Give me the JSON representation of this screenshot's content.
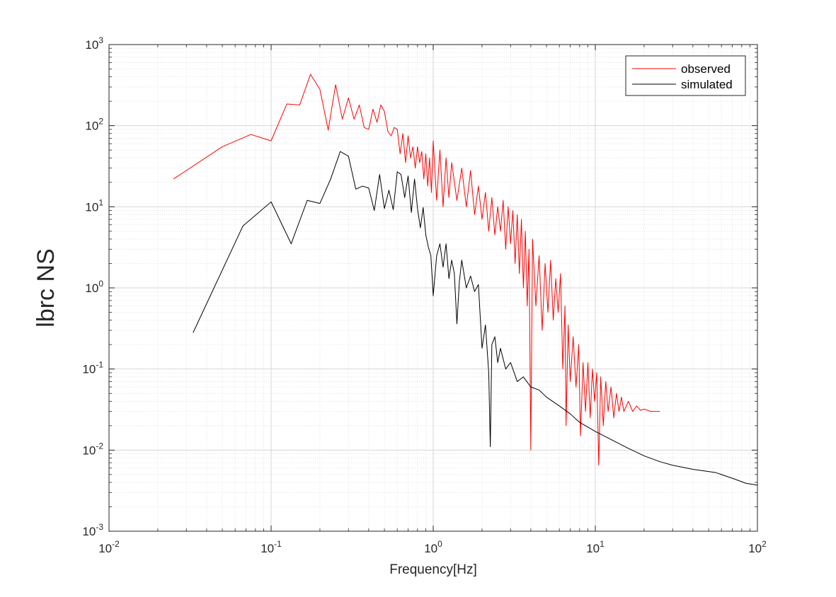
{
  "chart_data": {
    "type": "line",
    "title": "",
    "xlabel": "Frequency[Hz]",
    "ylabel": "lbrc NS",
    "xscale": "log",
    "yscale": "log",
    "xlim": [
      0.01,
      100
    ],
    "ylim": [
      0.001,
      1000
    ],
    "grid": true,
    "minor_grid": true,
    "legend_position": "top-right",
    "x_ticks": [
      {
        "base": "10",
        "exp": "-2"
      },
      {
        "base": "10",
        "exp": "-1"
      },
      {
        "base": "10",
        "exp": "0"
      },
      {
        "base": "10",
        "exp": "1"
      },
      {
        "base": "10",
        "exp": "2"
      }
    ],
    "y_ticks": [
      {
        "base": "10",
        "exp": "-3"
      },
      {
        "base": "10",
        "exp": "-2"
      },
      {
        "base": "10",
        "exp": "-1"
      },
      {
        "base": "10",
        "exp": "0"
      },
      {
        "base": "10",
        "exp": "1"
      },
      {
        "base": "10",
        "exp": "2"
      },
      {
        "base": "10",
        "exp": "3"
      }
    ],
    "series": [
      {
        "name": "observed",
        "color": "#ff0000",
        "points": [
          [
            0.025,
            22
          ],
          [
            0.05,
            55
          ],
          [
            0.075,
            78
          ],
          [
            0.1,
            65
          ],
          [
            0.125,
            185
          ],
          [
            0.15,
            180
          ],
          [
            0.175,
            430
          ],
          [
            0.2,
            280
          ],
          [
            0.225,
            88
          ],
          [
            0.25,
            320
          ],
          [
            0.275,
            120
          ],
          [
            0.3,
            220
          ],
          [
            0.325,
            120
          ],
          [
            0.35,
            180
          ],
          [
            0.375,
            95
          ],
          [
            0.4,
            90
          ],
          [
            0.425,
            160
          ],
          [
            0.45,
            110
          ],
          [
            0.475,
            180
          ],
          [
            0.5,
            150
          ],
          [
            0.525,
            85
          ],
          [
            0.55,
            75
          ],
          [
            0.575,
            95
          ],
          [
            0.6,
            90
          ],
          [
            0.625,
            45
          ],
          [
            0.65,
            80
          ],
          [
            0.675,
            35
          ],
          [
            0.7,
            75
          ],
          [
            0.725,
            40
          ],
          [
            0.75,
            55
          ],
          [
            0.775,
            30
          ],
          [
            0.8,
            55
          ],
          [
            0.825,
            35
          ],
          [
            0.85,
            48
          ],
          [
            0.875,
            22
          ],
          [
            0.9,
            45
          ],
          [
            0.925,
            18
          ],
          [
            0.95,
            40
          ],
          [
            0.975,
            15
          ],
          [
            1.0,
            65
          ],
          [
            1.05,
            12
          ],
          [
            1.1,
            50
          ],
          [
            1.15,
            10
          ],
          [
            1.2,
            40
          ],
          [
            1.25,
            13
          ],
          [
            1.3,
            35
          ],
          [
            1.4,
            12
          ],
          [
            1.5,
            30
          ],
          [
            1.6,
            10
          ],
          [
            1.7,
            28
          ],
          [
            1.8,
            8
          ],
          [
            1.9,
            18
          ],
          [
            2.0,
            7
          ],
          [
            2.1,
            15
          ],
          [
            2.2,
            5
          ],
          [
            2.3,
            13
          ],
          [
            2.4,
            4.5
          ],
          [
            2.5,
            10
          ],
          [
            2.6,
            5
          ],
          [
            2.7,
            12
          ],
          [
            2.8,
            3
          ],
          [
            2.9,
            10
          ],
          [
            3.0,
            3.5
          ],
          [
            3.1,
            9
          ],
          [
            3.2,
            2
          ],
          [
            3.3,
            8
          ],
          [
            3.4,
            1.5
          ],
          [
            3.5,
            7
          ],
          [
            3.6,
            1
          ],
          [
            3.7,
            5
          ],
          [
            3.8,
            0.6
          ],
          [
            3.9,
            3
          ],
          [
            4.0,
            0.01
          ],
          [
            4.1,
            4
          ],
          [
            4.3,
            0.6
          ],
          [
            4.5,
            2.5
          ],
          [
            4.7,
            0.3
          ],
          [
            4.9,
            2
          ],
          [
            5.1,
            0.5
          ],
          [
            5.3,
            2.2
          ],
          [
            5.5,
            0.4
          ],
          [
            5.7,
            1.3
          ],
          [
            5.9,
            0.5
          ],
          [
            6.1,
            1.5
          ],
          [
            6.3,
            0.1
          ],
          [
            6.5,
            0.6
          ],
          [
            6.6,
            0.02
          ],
          [
            6.8,
            0.35
          ],
          [
            7.0,
            0.07
          ],
          [
            7.3,
            0.25
          ],
          [
            7.6,
            0.06
          ],
          [
            7.9,
            0.2
          ],
          [
            8.1,
            0.015
          ],
          [
            8.4,
            0.12
          ],
          [
            8.7,
            0.03
          ],
          [
            9.0,
            0.12
          ],
          [
            9.3,
            0.025
          ],
          [
            9.6,
            0.1
          ],
          [
            9.9,
            0.04
          ],
          [
            10.2,
            0.09
          ],
          [
            10.5,
            0.0065
          ],
          [
            10.8,
            0.08
          ],
          [
            11.2,
            0.02
          ],
          [
            11.6,
            0.07
          ],
          [
            12.0,
            0.03
          ],
          [
            12.5,
            0.06
          ],
          [
            13.0,
            0.025
          ],
          [
            13.5,
            0.05
          ],
          [
            14.0,
            0.03
          ],
          [
            14.5,
            0.045
          ],
          [
            15.0,
            0.03
          ],
          [
            16.0,
            0.04
          ],
          [
            17.0,
            0.03
          ],
          [
            18.0,
            0.035
          ],
          [
            19.0,
            0.031
          ],
          [
            20.0,
            0.032
          ],
          [
            22.0,
            0.03
          ],
          [
            25.0,
            0.03
          ]
        ]
      },
      {
        "name": "simulated",
        "color": "#000000",
        "points": [
          [
            0.033,
            0.28
          ],
          [
            0.067,
            5.8
          ],
          [
            0.1,
            11.5
          ],
          [
            0.133,
            3.5
          ],
          [
            0.167,
            12
          ],
          [
            0.2,
            11
          ],
          [
            0.233,
            22
          ],
          [
            0.267,
            48
          ],
          [
            0.3,
            42
          ],
          [
            0.333,
            16.5
          ],
          [
            0.367,
            18
          ],
          [
            0.4,
            17
          ],
          [
            0.433,
            9
          ],
          [
            0.467,
            25
          ],
          [
            0.5,
            9.5
          ],
          [
            0.533,
            16
          ],
          [
            0.567,
            9.2
          ],
          [
            0.6,
            27
          ],
          [
            0.633,
            25
          ],
          [
            0.667,
            13
          ],
          [
            0.7,
            24
          ],
          [
            0.733,
            8.5
          ],
          [
            0.767,
            22
          ],
          [
            0.8,
            9.5
          ],
          [
            0.833,
            5.5
          ],
          [
            0.867,
            9.8
          ],
          [
            0.9,
            4.5
          ],
          [
            0.933,
            3.2
          ],
          [
            0.967,
            2.5
          ],
          [
            1.0,
            0.8
          ],
          [
            1.05,
            2.5
          ],
          [
            1.1,
            3.5
          ],
          [
            1.15,
            1.8
          ],
          [
            1.2,
            3.5
          ],
          [
            1.25,
            1.3
          ],
          [
            1.3,
            2.2
          ],
          [
            1.35,
            1.5
          ],
          [
            1.4,
            0.36
          ],
          [
            1.45,
            1.2
          ],
          [
            1.5,
            2.2
          ],
          [
            1.6,
            1.0
          ],
          [
            1.7,
            1.4
          ],
          [
            1.8,
            0.9
          ],
          [
            1.9,
            1.1
          ],
          [
            2.0,
            0.18
          ],
          [
            2.1,
            0.35
          ],
          [
            2.2,
            0.09
          ],
          [
            2.25,
            0.011
          ],
          [
            2.3,
            0.2
          ],
          [
            2.4,
            0.25
          ],
          [
            2.5,
            0.12
          ],
          [
            2.6,
            0.18
          ],
          [
            2.8,
            0.1
          ],
          [
            3.0,
            0.12
          ],
          [
            3.3,
            0.07
          ],
          [
            3.6,
            0.08
          ],
          [
            4.0,
            0.06
          ],
          [
            4.5,
            0.055
          ],
          [
            5.0,
            0.045
          ],
          [
            6.0,
            0.035
          ],
          [
            7.0,
            0.028
          ],
          [
            8.0,
            0.022
          ],
          [
            10.0,
            0.017
          ],
          [
            13.0,
            0.013
          ],
          [
            16.0,
            0.0105
          ],
          [
            20.0,
            0.0085
          ],
          [
            25.0,
            0.0072
          ],
          [
            30.0,
            0.0065
          ],
          [
            40.0,
            0.0058
          ],
          [
            55.0,
            0.0053
          ],
          [
            70.0,
            0.0045
          ],
          [
            85.0,
            0.0039
          ],
          [
            100.0,
            0.0037
          ]
        ]
      }
    ]
  }
}
